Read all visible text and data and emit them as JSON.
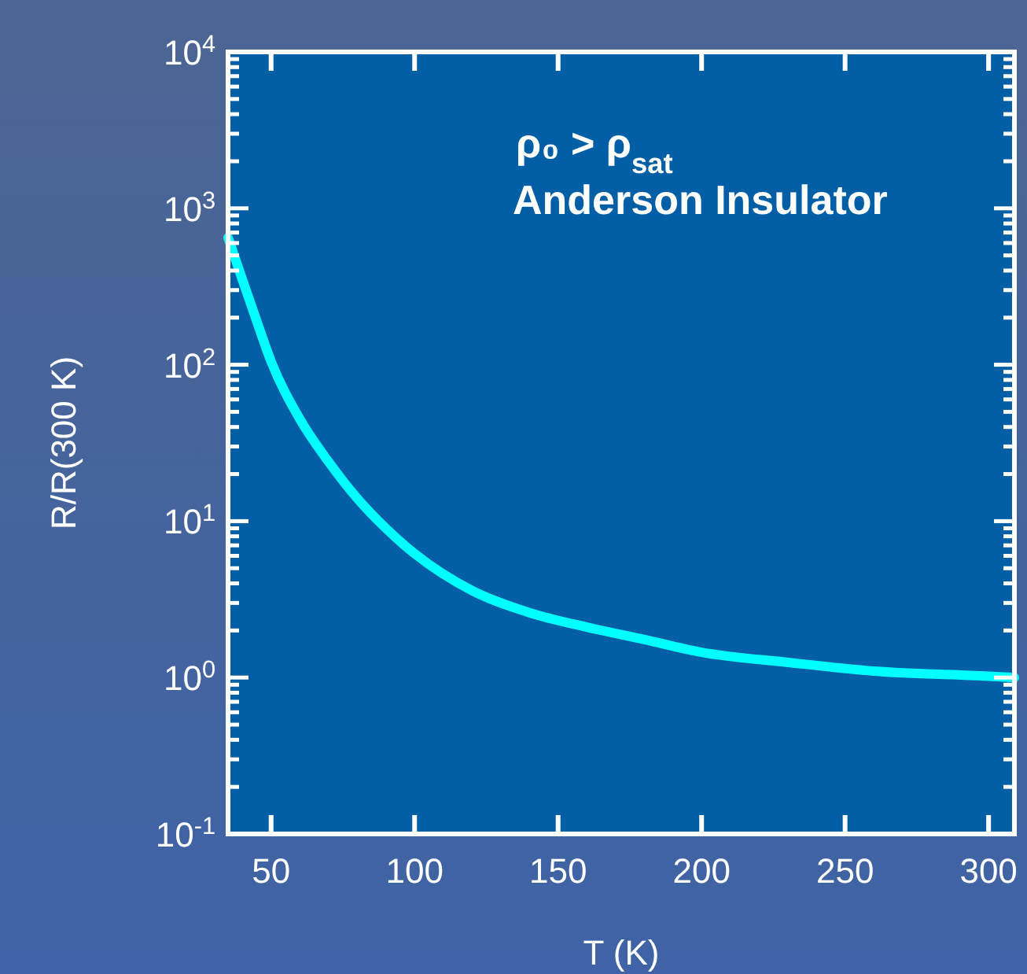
{
  "chart_data": {
    "type": "line",
    "xlabel": "T (K)",
    "ylabel": "R/R(300 K)",
    "log": "y",
    "grid": false,
    "marker": "none",
    "line_style": "solid",
    "xlim": [
      35,
      309
    ],
    "xticks": [
      50,
      100,
      150,
      200,
      250,
      300
    ],
    "ylim": [
      0.1,
      10000
    ],
    "yticks": [
      {
        "value": 0.1,
        "label": "10$^{-1}$"
      },
      {
        "value": 1,
        "label": "10$^{0}$"
      },
      {
        "value": 10,
        "label": "10$^{1}$"
      },
      {
        "value": 100,
        "label": "10$^{2}$"
      },
      {
        "value": 1000,
        "label": "10$^{3}$"
      },
      {
        "value": 10000,
        "label": "10$^{4}$"
      },
      {
        "value": 0.2,
        "label": null
      },
      {
        "value": 0.3,
        "label": null
      },
      {
        "value": 0.4,
        "label": null
      },
      {
        "value": 0.5,
        "label": null
      },
      {
        "value": 0.6,
        "label": null
      },
      {
        "value": 0.7,
        "label": null
      },
      {
        "value": 0.8,
        "label": null
      },
      {
        "value": 0.9,
        "label": null
      },
      {
        "value": 2,
        "label": null
      },
      {
        "value": 3,
        "label": null
      },
      {
        "value": 4,
        "label": null
      },
      {
        "value": 5,
        "label": null
      },
      {
        "value": 6,
        "label": null
      },
      {
        "value": 7,
        "label": null
      },
      {
        "value": 8,
        "label": null
      },
      {
        "value": 9,
        "label": null
      },
      {
        "value": 20,
        "label": null
      },
      {
        "value": 30,
        "label": null
      },
      {
        "value": 40,
        "label": null
      },
      {
        "value": 50,
        "label": null
      },
      {
        "value": 60,
        "label": null
      },
      {
        "value": 70,
        "label": null
      },
      {
        "value": 80,
        "label": null
      },
      {
        "value": 90,
        "label": null
      },
      {
        "value": 200,
        "label": null
      },
      {
        "value": 300,
        "label": null
      },
      {
        "value": 400,
        "label": null
      },
      {
        "value": 500,
        "label": null
      },
      {
        "value": 600,
        "label": null
      },
      {
        "value": 700,
        "label": null
      },
      {
        "value": 800,
        "label": null
      },
      {
        "value": 900,
        "label": null
      },
      {
        "value": 2000,
        "label": null
      },
      {
        "value": 3000,
        "label": null
      },
      {
        "value": 4000,
        "label": null
      },
      {
        "value": 5000,
        "label": null
      },
      {
        "value": 6000,
        "label": null
      },
      {
        "value": 7000,
        "label": null
      },
      {
        "value": 8000,
        "label": null
      },
      {
        "value": 9000,
        "label": null
      }
    ],
    "annotations": [
      "ρ₀ > ρ$_{sat}$",
      "Anderson Insulator"
    ],
    "series": [
      {
        "color": "#00ffff",
        "x": [
          35,
          40,
          45,
          50,
          60,
          70,
          80,
          90,
          100,
          120,
          140,
          160,
          180,
          200,
          230,
          260,
          300,
          309
        ],
        "values": [
          650,
          350,
          190,
          105,
          45,
          24,
          14,
          9,
          6.2,
          3.6,
          2.6,
          2.1,
          1.75,
          1.45,
          1.25,
          1.1,
          1.02,
          1.0
        ]
      }
    ]
  }
}
